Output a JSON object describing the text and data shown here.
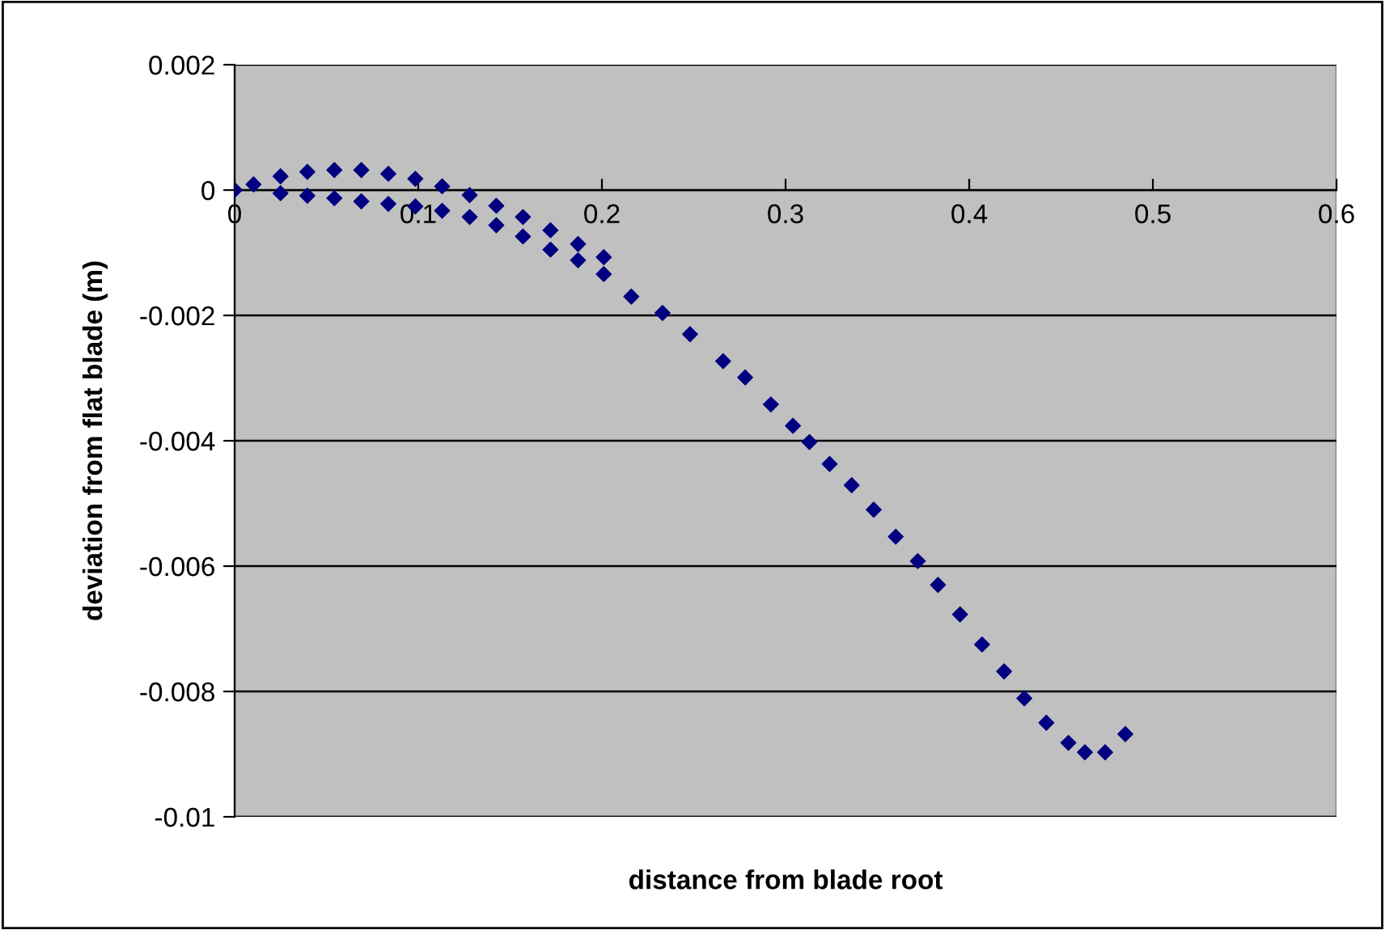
{
  "chart_data": {
    "type": "scatter",
    "xlabel": "distance from blade root",
    "ylabel": "deviation from flat blade (m)",
    "xlim": [
      0,
      0.6
    ],
    "ylim": [
      -0.01,
      0.002
    ],
    "xticks": [
      0,
      0.1,
      0.2,
      0.3,
      0.4,
      0.5,
      0.6
    ],
    "yticks": [
      -0.01,
      -0.008,
      -0.006,
      -0.004,
      -0.002,
      0,
      0.002
    ],
    "grid": "y",
    "marker": "diamond",
    "legend": false,
    "series": [
      {
        "color": "#000080",
        "x": [
          0,
          0.0103,
          0.025,
          0.0396,
          0.0543,
          0.069,
          0.0837,
          0.0984,
          0.113,
          0.128,
          0.1425,
          0.157,
          0.172,
          0.187,
          0.201,
          0.025,
          0.0396,
          0.0543,
          0.069,
          0.0837,
          0.0984,
          0.113,
          0.128,
          0.1425,
          0.157,
          0.172,
          0.187,
          0.201,
          0.216,
          0.233,
          0.248,
          0.266,
          0.278,
          0.292,
          0.304,
          0.313,
          0.324,
          0.336,
          0.348,
          0.36,
          0.372,
          0.383,
          0.395,
          0.407,
          0.419,
          0.43,
          0.442,
          0.454,
          0.463,
          0.474,
          0.485
        ],
        "values": [
          0,
          9e-05,
          0.00022,
          0.00029,
          0.00032,
          0.00032,
          0.00026,
          0.00018,
          6e-05,
          -8e-05,
          -0.00025,
          -0.00043,
          -0.00064,
          -0.00086,
          -0.00107,
          -5e-05,
          -9e-05,
          -0.00013,
          -0.00018,
          -0.00022,
          -0.00026,
          -0.00033,
          -0.00043,
          -0.00056,
          -0.00074,
          -0.00095,
          -0.00112,
          -0.00134,
          -0.0017,
          -0.00196,
          -0.0023,
          -0.00273,
          -0.00299,
          -0.00342,
          -0.00376,
          -0.00402,
          -0.00437,
          -0.00471,
          -0.0051,
          -0.00553,
          -0.00592,
          -0.0063,
          -0.00677,
          -0.00725,
          -0.00768,
          -0.00811,
          -0.0085,
          -0.00882,
          -0.00897,
          -0.00897,
          -0.00868
        ]
      }
    ]
  }
}
